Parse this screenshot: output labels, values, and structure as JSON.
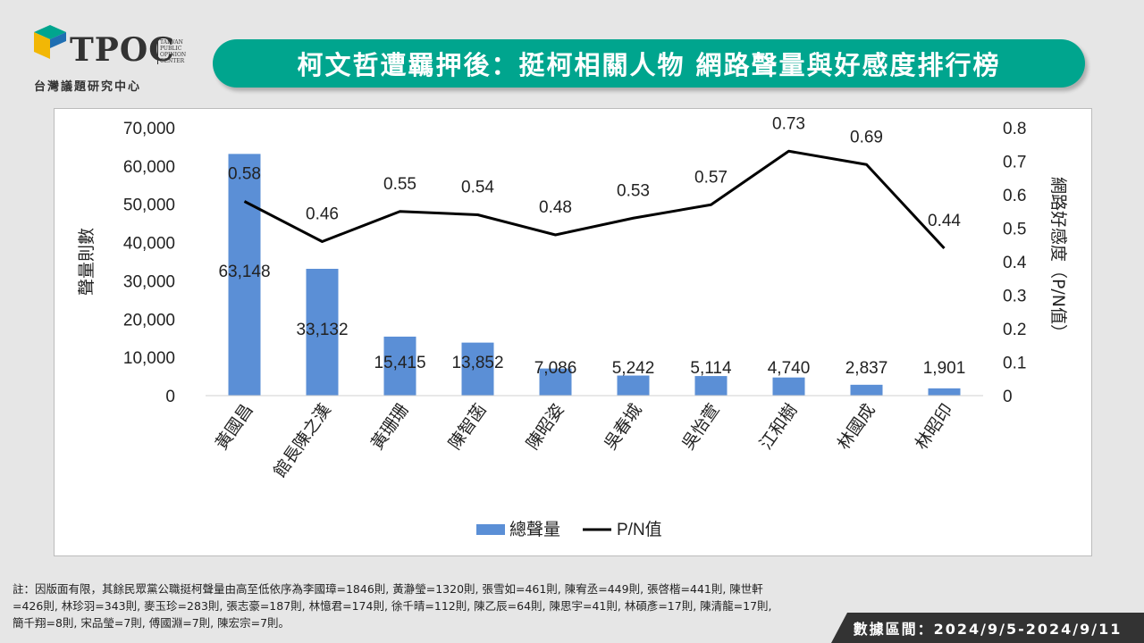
{
  "logo": {
    "brand": "TPOC",
    "side_text": [
      "TAIWAN",
      "PUBLIC",
      "OPINION",
      "CENTER"
    ],
    "subtitle": "台灣議題研究中心"
  },
  "title": "柯文哲遭羈押後：挺柯相關人物  網路聲量與好感度排行榜",
  "chart_data": {
    "type": "bar+line",
    "categories": [
      "黃國昌",
      "館長陳之漢",
      "黃珊珊",
      "陳智菡",
      "陳昭姿",
      "吳春城",
      "吳怡萱",
      "江和樹",
      "林國成",
      "林昭印"
    ],
    "series": [
      {
        "name": "總聲量",
        "type": "bar",
        "axis": "left",
        "color": "#5b8fd6",
        "values": [
          63148,
          33132,
          15415,
          13852,
          7086,
          5242,
          5114,
          4740,
          2837,
          1901
        ],
        "labels": [
          "63,148",
          "33,132",
          "15,415",
          "13,852",
          "7,086",
          "5,242",
          "5,114",
          "4,740",
          "2,837",
          "1,901"
        ]
      },
      {
        "name": "P/N值",
        "type": "line",
        "axis": "right",
        "color": "#000000",
        "values": [
          0.58,
          0.46,
          0.55,
          0.54,
          0.48,
          0.53,
          0.57,
          0.73,
          0.69,
          0.44
        ],
        "labels": [
          "0.58",
          "0.46",
          "0.55",
          "0.54",
          "0.48",
          "0.53",
          "0.57",
          "0.73",
          "0.69",
          "0.44"
        ]
      }
    ],
    "ylabel_left": "聲量則數",
    "ylabel_right": "網路好感度（P/N值）",
    "ylim_left": [
      0,
      70000
    ],
    "ylim_right": [
      0,
      0.8
    ],
    "left_ticks": [
      "0",
      "10,000",
      "20,000",
      "30,000",
      "40,000",
      "50,000",
      "60,000",
      "70,000"
    ],
    "right_ticks": [
      "0",
      "0.1",
      "0.2",
      "0.3",
      "0.4",
      "0.5",
      "0.6",
      "0.7",
      "0.8"
    ],
    "grid": false,
    "legend_position": "bottom"
  },
  "footnote": "註：因版面有限，其餘民眾黨公職挺柯聲量由高至低依序為李國璋=1846則, 黃瀞瑩=1320則, 張雪如=461則, 陳宥丞=449則, 張啓楷=441則, 陳世軒=426則, 林珍羽=343則, 麥玉珍=283則, 張志豪=187則, 林憶君=174則, 徐千晴=112則, 陳乙辰=64則, 陳思宇=41則, 林碩彥=17則, 陳清龍=17則, 簡千翔=8則, 宋品瑩=7則, 傅國淵=7則, 陳宏宗=7則。",
  "date_range": "數據區間：2024/9/5-2024/9/11"
}
